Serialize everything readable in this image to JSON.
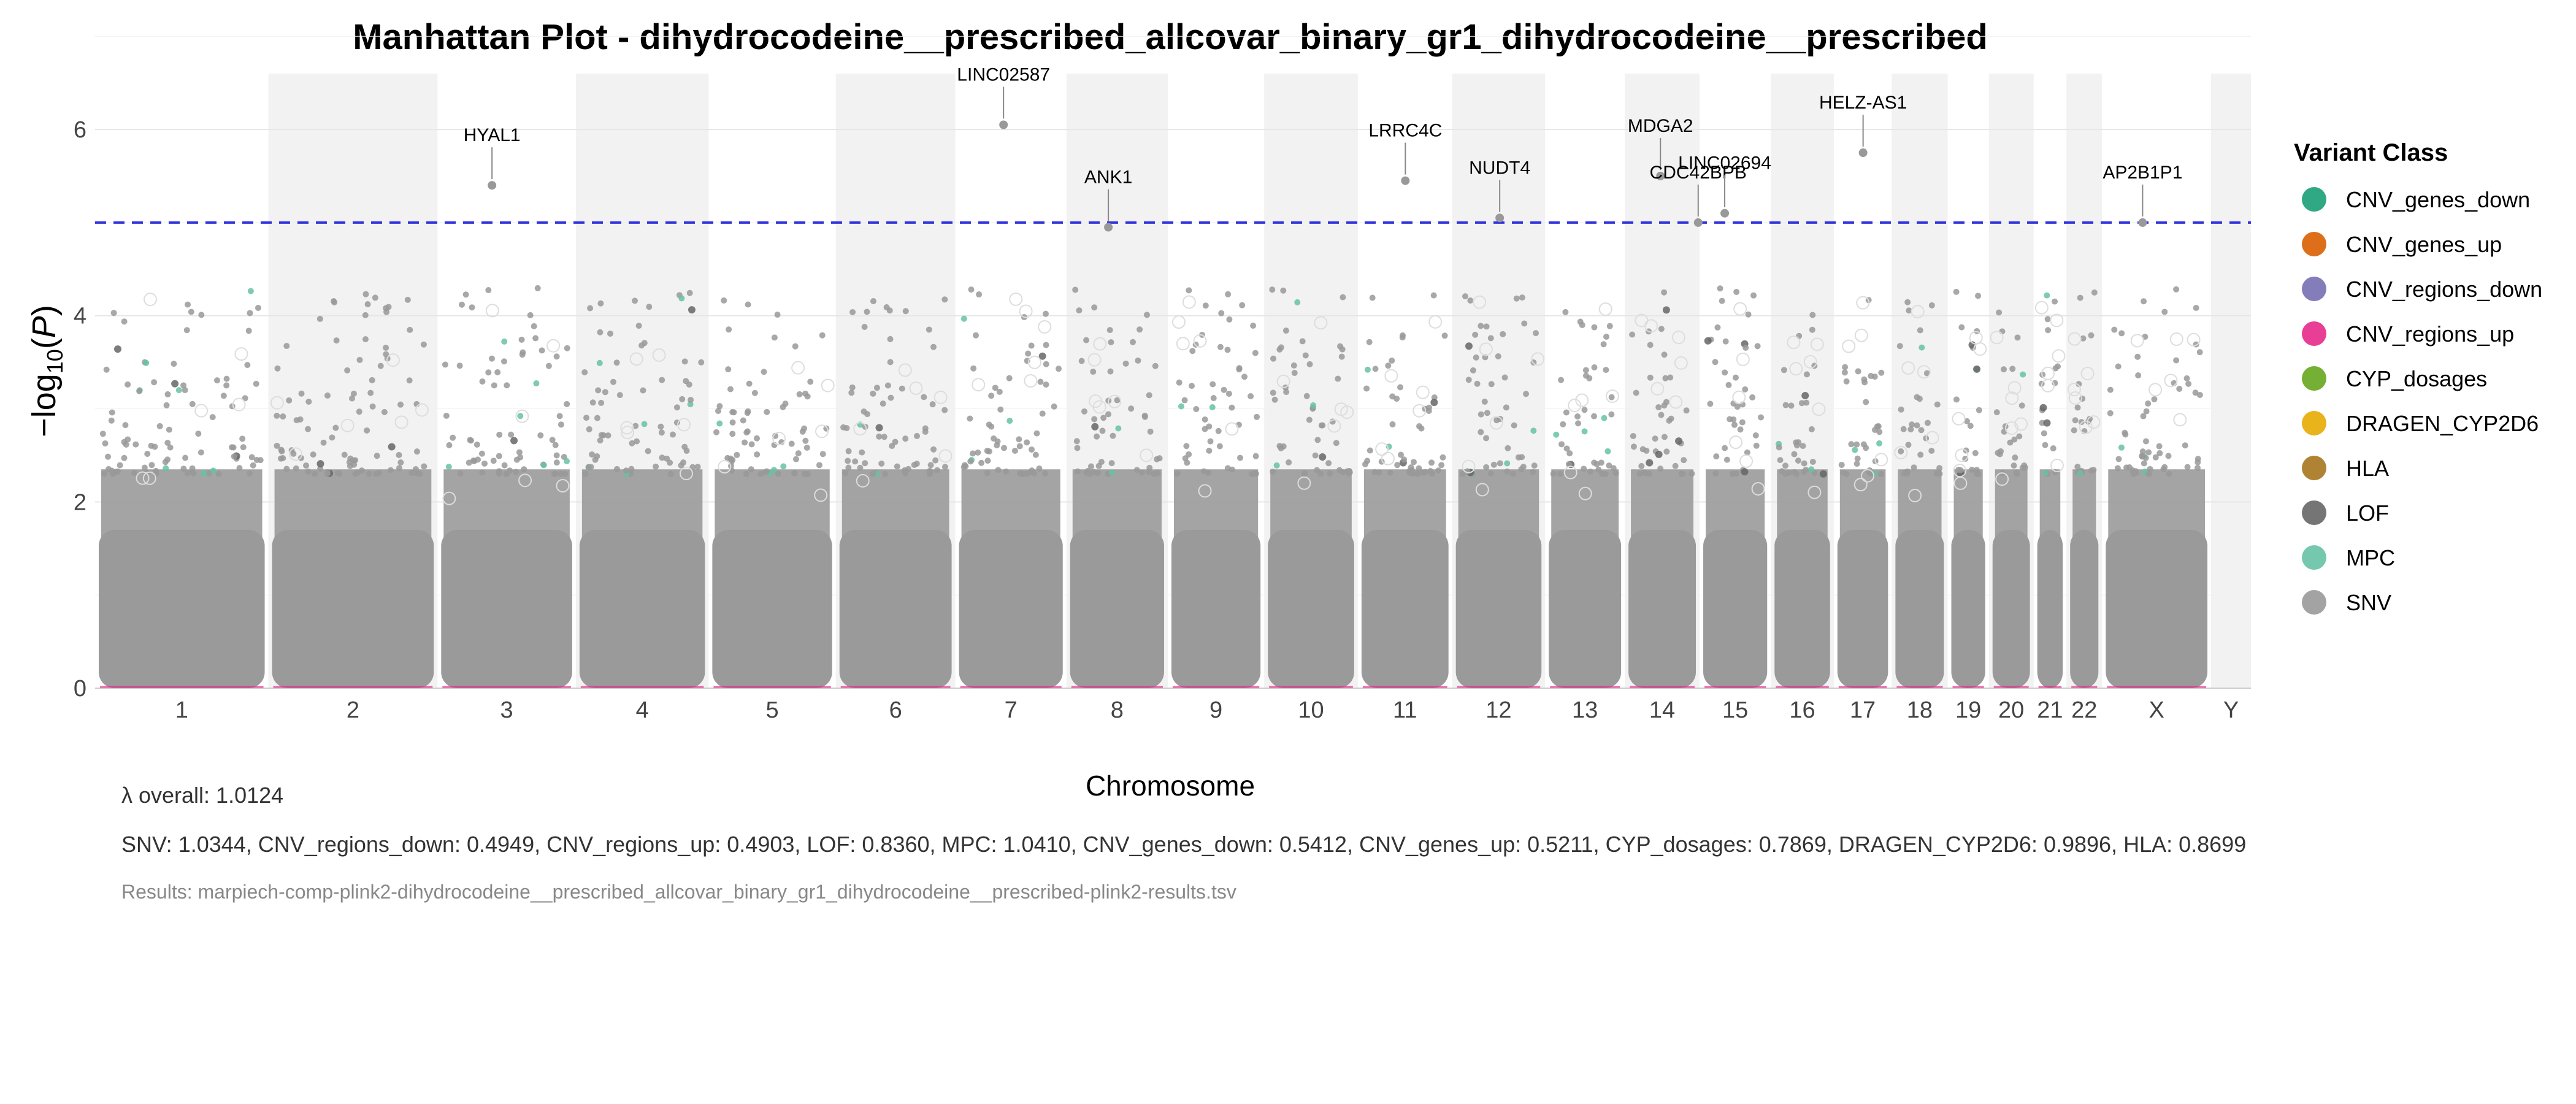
{
  "chart_data": {
    "type": "scatter",
    "title": "Manhattan Plot - dihydrocodeine__prescribed_allcovar_binary_gr1_dihydrocodeine__prescribed",
    "xlabel": "Chromosome",
    "ylabel_main": "−log",
    "ylabel_sub": "10",
    "ylabel_paren_open": "(",
    "ylabel_var": "P",
    "ylabel_paren_close": ")",
    "ylim": [
      0,
      6.6
    ],
    "yticks": [
      0,
      2,
      4,
      6
    ],
    "threshold": 5,
    "threshold_color": "#3333dd",
    "chromosomes": [
      {
        "label": "1",
        "start": 0,
        "end": 248
      },
      {
        "label": "2",
        "start": 248,
        "end": 490
      },
      {
        "label": "3",
        "start": 490,
        "end": 688
      },
      {
        "label": "4",
        "start": 688,
        "end": 878
      },
      {
        "label": "5",
        "start": 878,
        "end": 1060
      },
      {
        "label": "6",
        "start": 1060,
        "end": 1231
      },
      {
        "label": "7",
        "start": 1231,
        "end": 1390
      },
      {
        "label": "8",
        "start": 1390,
        "end": 1535
      },
      {
        "label": "9",
        "start": 1535,
        "end": 1673
      },
      {
        "label": "10",
        "start": 1673,
        "end": 1807
      },
      {
        "label": "11",
        "start": 1807,
        "end": 1942
      },
      {
        "label": "12",
        "start": 1942,
        "end": 2075
      },
      {
        "label": "13",
        "start": 2075,
        "end": 2189
      },
      {
        "label": "14",
        "start": 2189,
        "end": 2296
      },
      {
        "label": "15",
        "start": 2296,
        "end": 2398
      },
      {
        "label": "16",
        "start": 2398,
        "end": 2488
      },
      {
        "label": "17",
        "start": 2488,
        "end": 2571
      },
      {
        "label": "18",
        "start": 2571,
        "end": 2651
      },
      {
        "label": "19",
        "start": 2651,
        "end": 2710
      },
      {
        "label": "20",
        "start": 2710,
        "end": 2774
      },
      {
        "label": "21",
        "start": 2774,
        "end": 2821
      },
      {
        "label": "22",
        "start": 2821,
        "end": 2872
      },
      {
        "label": "X",
        "start": 2872,
        "end": 3028
      },
      {
        "label": "Y",
        "start": 3028,
        "end": 3085
      }
    ],
    "annotations": [
      {
        "gene": "HYAL1",
        "x": 568,
        "y": 5.4
      },
      {
        "gene": "LINC02587",
        "x": 1300,
        "y": 6.05
      },
      {
        "gene": "ANK1",
        "x": 1450,
        "y": 4.95
      },
      {
        "gene": "LRRC4C",
        "x": 1875,
        "y": 5.45
      },
      {
        "gene": "NUDT4",
        "x": 2010,
        "y": 5.05
      },
      {
        "gene": "MDGA2",
        "x": 2240,
        "y": 5.5
      },
      {
        "gene": "CDC42BPB",
        "x": 2294,
        "y": 5.0
      },
      {
        "gene": "LINC02694",
        "x": 2332,
        "y": 5.1
      },
      {
        "gene": "HELZ-AS1",
        "x": 2530,
        "y": 5.75
      },
      {
        "gene": "AP2B1P1",
        "x": 2930,
        "y": 5.0
      }
    ],
    "legend": {
      "title": "Variant Class",
      "position": "right",
      "items": [
        {
          "label": "CNV_genes_down",
          "color": "#1b9e77"
        },
        {
          "label": "CNV_genes_up",
          "color": "#d95f02"
        },
        {
          "label": "CNV_regions_down",
          "color": "#7570b3"
        },
        {
          "label": "CNV_regions_up",
          "color": "#e7298a"
        },
        {
          "label": "CYP_dosages",
          "color": "#66a61e"
        },
        {
          "label": "DRAGEN_CYP2D6",
          "color": "#e6ab02"
        },
        {
          "label": "HLA",
          "color": "#a6761d"
        },
        {
          "label": "LOF",
          "color": "#666666"
        },
        {
          "label": "MPC",
          "color": "#66c2a5"
        },
        {
          "label": "SNV",
          "color": "#999999"
        }
      ]
    }
  },
  "footer": {
    "lambda_overall": "λ overall: 1.0124",
    "lambda_by_class": "SNV: 1.0344, CNV_regions_down: 0.4949, CNV_regions_up: 0.4903, LOF: 0.8360, MPC: 1.0410, CNV_genes_down: 0.5412, CNV_genes_up: 0.5211, CYP_dosages: 0.7869, DRAGEN_CYP2D6: 0.9896, HLA: 0.8699",
    "results_file": "Results: marpiech-comp-plink2-dihydrocodeine__prescribed_allcovar_binary_gr1_dihydrocodeine__prescribed-plink2-results.tsv"
  }
}
